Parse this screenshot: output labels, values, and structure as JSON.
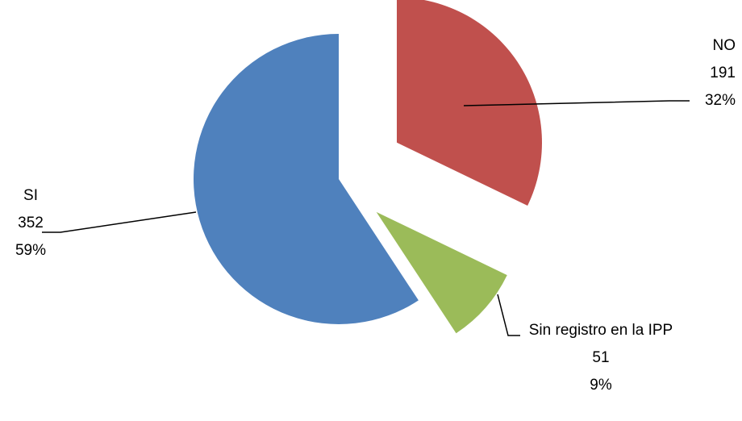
{
  "chart_data": {
    "type": "pie",
    "categories": [
      "NO",
      "Sin registro en la IPP",
      "SI"
    ],
    "values": [
      191,
      51,
      352
    ],
    "percent_labels": [
      "32%",
      "9%",
      "59%"
    ],
    "colors": [
      "#c0504d",
      "#9bbb59",
      "#4f81bd"
    ]
  }
}
